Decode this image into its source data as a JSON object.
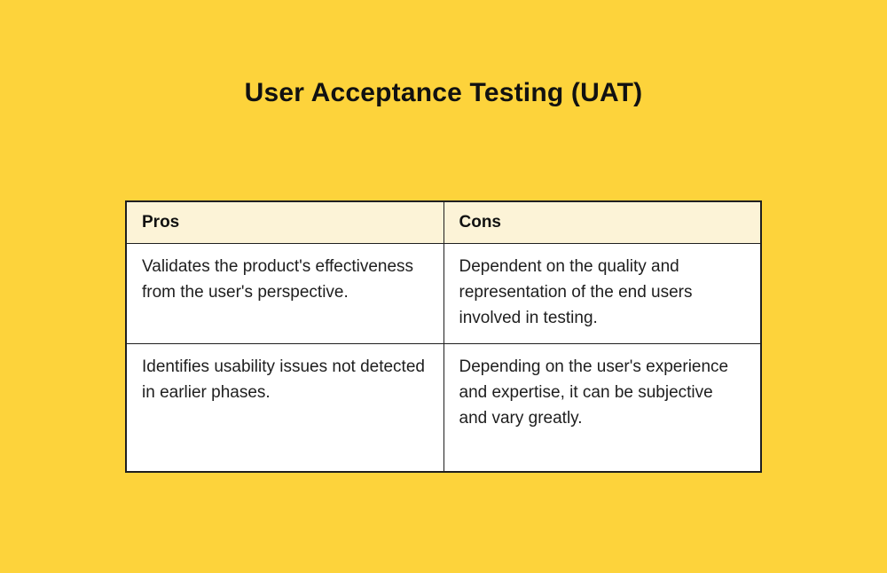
{
  "title": "User Acceptance Testing (UAT)",
  "table": {
    "headers": [
      "Pros",
      "Cons"
    ],
    "rows": [
      [
        "Validates the product's effectiveness from the user's perspective.",
        "Dependent on the quality and representation of the end users involved in testing."
      ],
      [
        "Identifies usability issues not detected in earlier phases.",
        "Depending on the user's experience and expertise, it can be subjective and vary greatly."
      ]
    ]
  },
  "colors": {
    "bg": "#FDD33B",
    "header_bg": "#FCF3D7",
    "border": "#1F1F1F",
    "text": "#1E1E1E",
    "title": "#111111"
  }
}
